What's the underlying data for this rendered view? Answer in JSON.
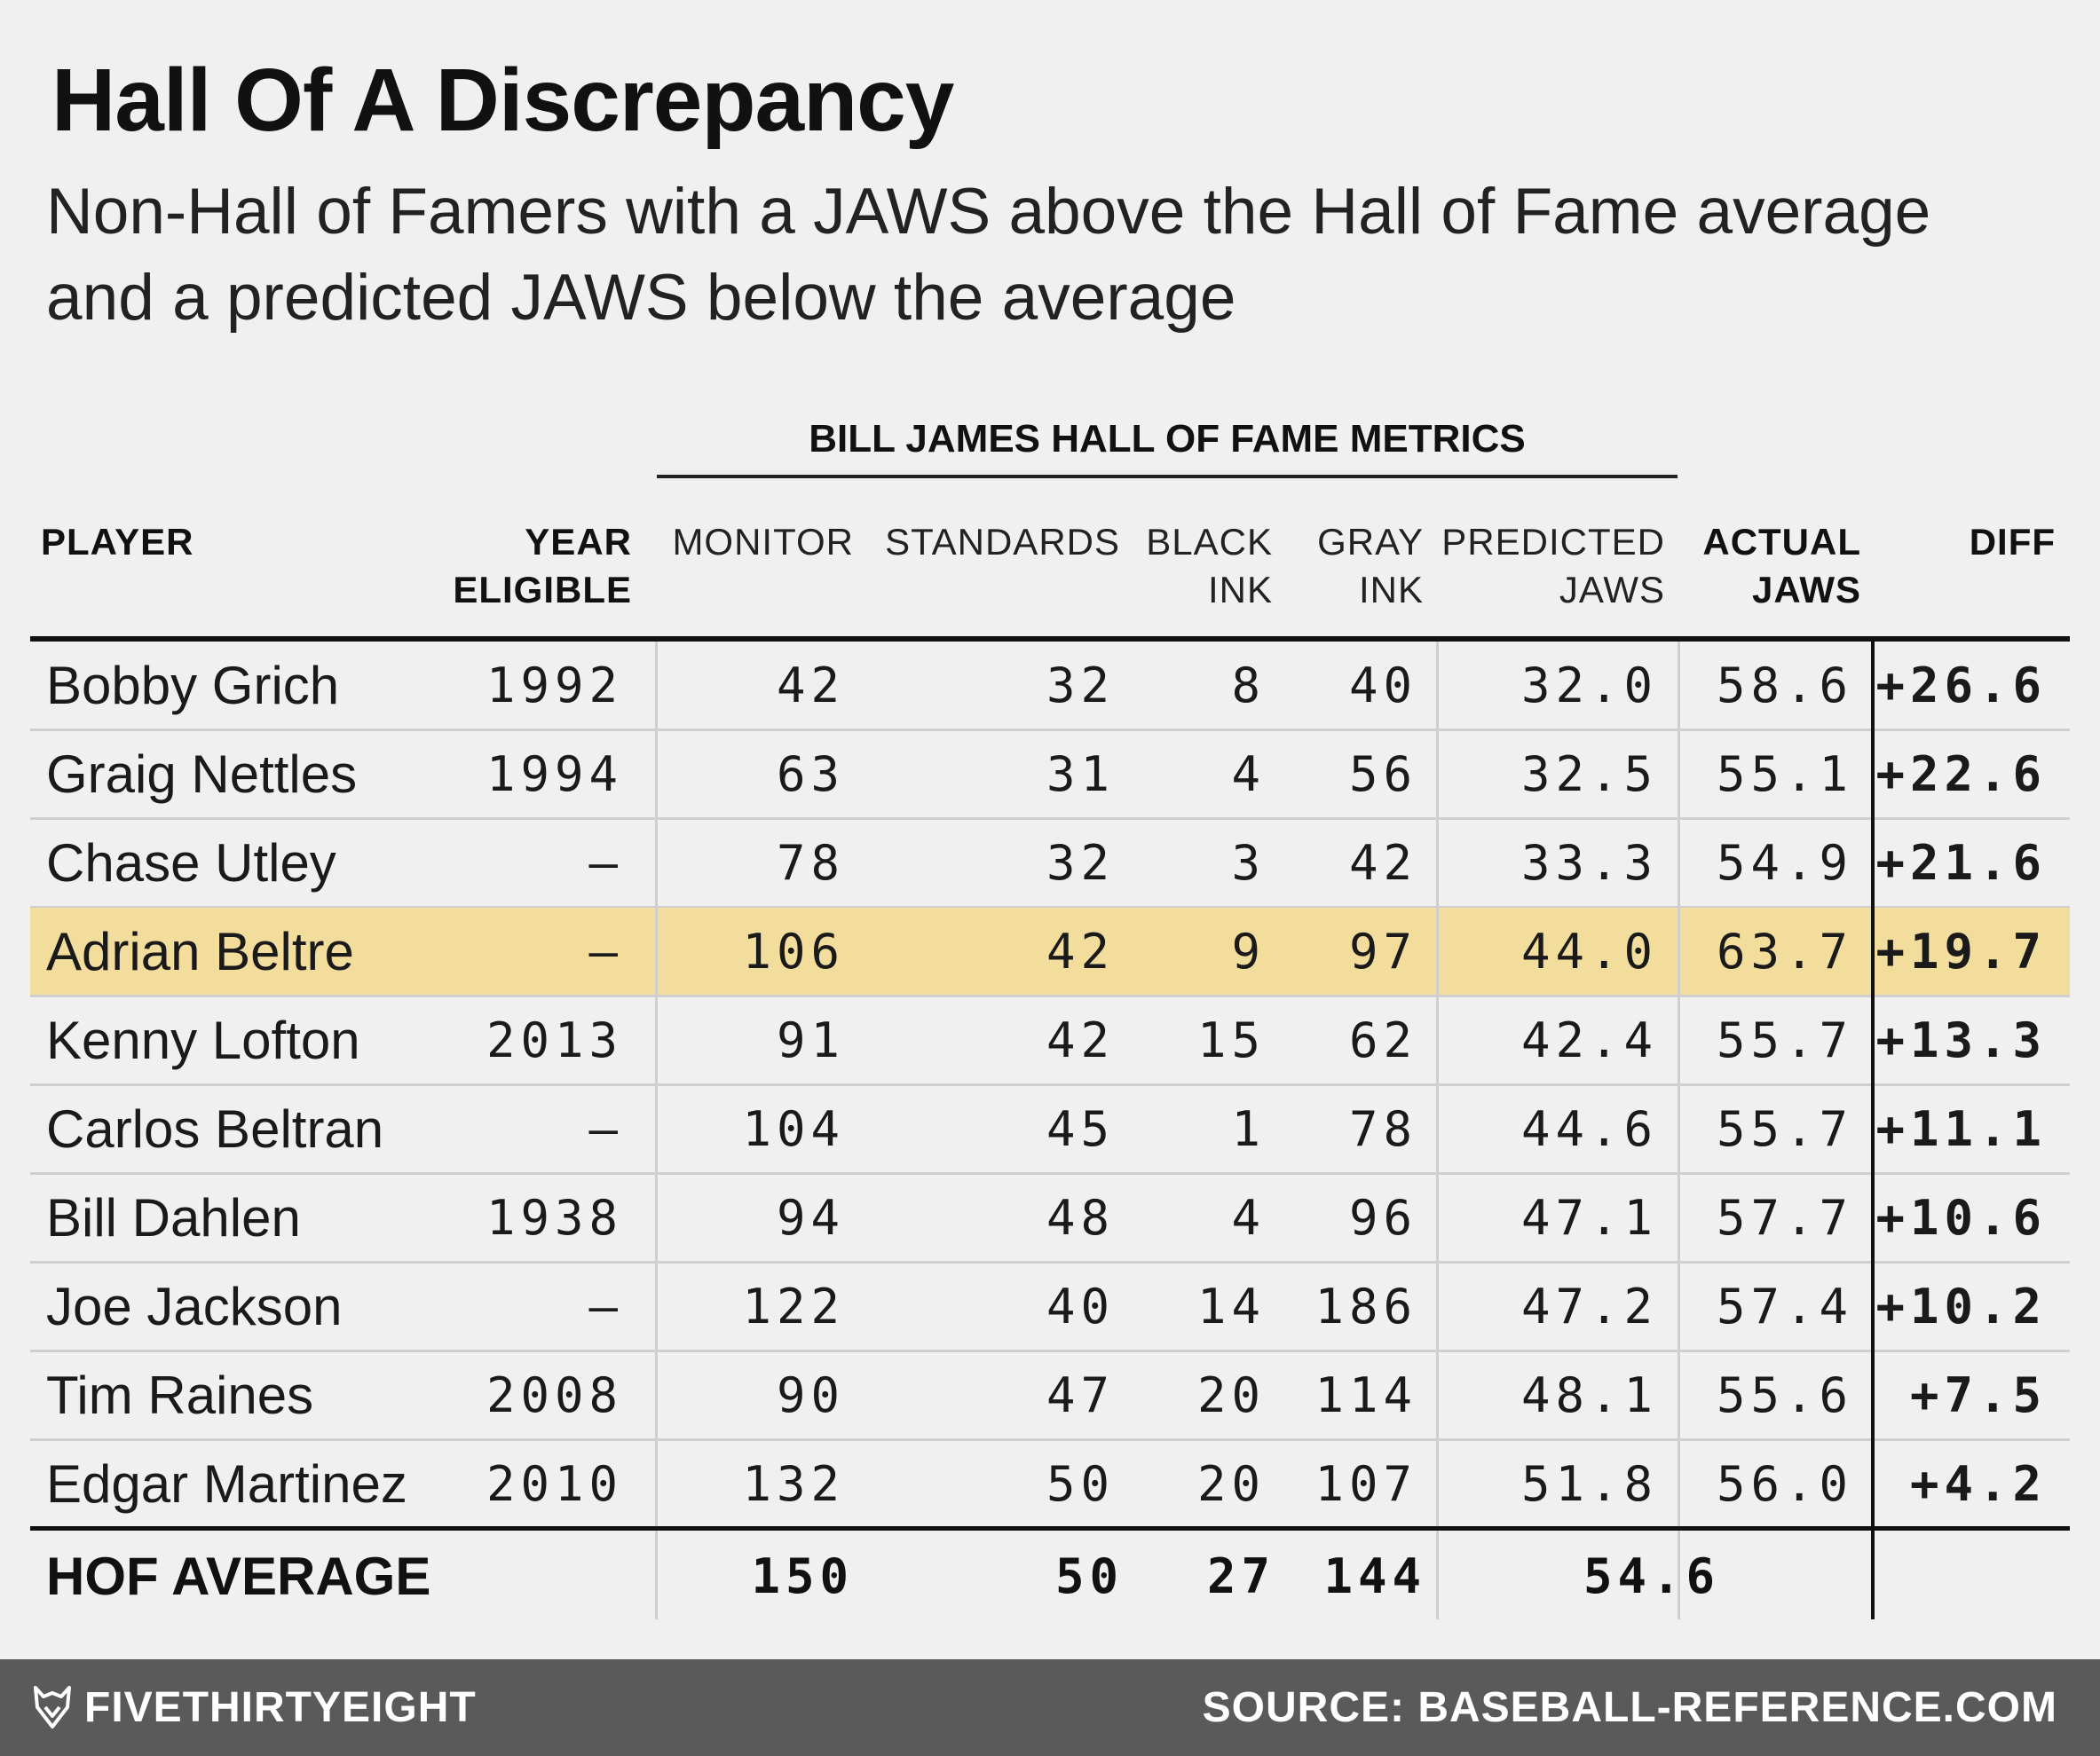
{
  "chart_data": {
    "type": "table",
    "title": "Hall Of A Discrepancy",
    "subtitle": "Non-Hall of Famers with a JAWS above the Hall of Fame average and a predicted JAWS below the average",
    "group_header": "BILL JAMES HALL OF FAME METRICS",
    "columns": [
      {
        "key": "player",
        "line1": "",
        "line2": "PLAYER"
      },
      {
        "key": "year",
        "line1": "YEAR",
        "line2": "ELIGIBLE"
      },
      {
        "key": "monitor",
        "line1": "",
        "line2": "MONITOR"
      },
      {
        "key": "standards",
        "line1": "",
        "line2": "STANDARDS"
      },
      {
        "key": "black",
        "line1": "BLACK",
        "line2": "INK"
      },
      {
        "key": "gray",
        "line1": "GRAY",
        "line2": "INK"
      },
      {
        "key": "predicted",
        "line1": "PREDICTED",
        "line2": "JAWS"
      },
      {
        "key": "actual",
        "line1": "ACTUAL",
        "line2": "JAWS"
      },
      {
        "key": "diff",
        "line1": "",
        "line2": "DIFF"
      }
    ],
    "rows": [
      {
        "player": "Bobby Grich",
        "year": "1992",
        "monitor": "42",
        "standards": "32",
        "black": "8",
        "gray": "40",
        "predicted": "32.0",
        "actual": "58.6",
        "diff": "+26.6"
      },
      {
        "player": "Graig Nettles",
        "year": "1994",
        "monitor": "63",
        "standards": "31",
        "black": "4",
        "gray": "56",
        "predicted": "32.5",
        "actual": "55.1",
        "diff": "+22.6"
      },
      {
        "player": "Chase Utley",
        "year": "—",
        "monitor": "78",
        "standards": "32",
        "black": "3",
        "gray": "42",
        "predicted": "33.3",
        "actual": "54.9",
        "diff": "+21.6"
      },
      {
        "player": "Adrian Beltre",
        "year": "—",
        "monitor": "106",
        "standards": "42",
        "black": "9",
        "gray": "97",
        "predicted": "44.0",
        "actual": "63.7",
        "diff": "+19.7",
        "highlight": true
      },
      {
        "player": "Kenny Lofton",
        "year": "2013",
        "monitor": "91",
        "standards": "42",
        "black": "15",
        "gray": "62",
        "predicted": "42.4",
        "actual": "55.7",
        "diff": "+13.3"
      },
      {
        "player": "Carlos Beltran",
        "year": "—",
        "monitor": "104",
        "standards": "45",
        "black": "1",
        "gray": "78",
        "predicted": "44.6",
        "actual": "55.7",
        "diff": "+11.1"
      },
      {
        "player": "Bill Dahlen",
        "year": "1938",
        "monitor": "94",
        "standards": "48",
        "black": "4",
        "gray": "96",
        "predicted": "47.1",
        "actual": "57.7",
        "diff": "+10.6"
      },
      {
        "player": "Joe Jackson",
        "year": "—",
        "monitor": "122",
        "standards": "40",
        "black": "14",
        "gray": "186",
        "predicted": "47.2",
        "actual": "57.4",
        "diff": "+10.2"
      },
      {
        "player": "Tim Raines",
        "year": "2008",
        "monitor": "90",
        "standards": "47",
        "black": "20",
        "gray": "114",
        "predicted": "48.1",
        "actual": "55.6",
        "diff": "+7.5"
      },
      {
        "player": "Edgar Martinez",
        "year": "2010",
        "monitor": "132",
        "standards": "50",
        "black": "20",
        "gray": "107",
        "predicted": "51.8",
        "actual": "56.0",
        "diff": "+4.2"
      }
    ],
    "average": {
      "label": "HOF AVERAGE",
      "monitor": "150",
      "standards": "50",
      "black": "27",
      "gray": "144",
      "jaws": "54.6"
    },
    "highlight_color": "#f2dd9d"
  },
  "footer": {
    "brand": "FIVETHIRTYEIGHT",
    "brand_icon": "fox-icon",
    "source": "SOURCE: BASEBALL-REFERENCE.COM"
  }
}
